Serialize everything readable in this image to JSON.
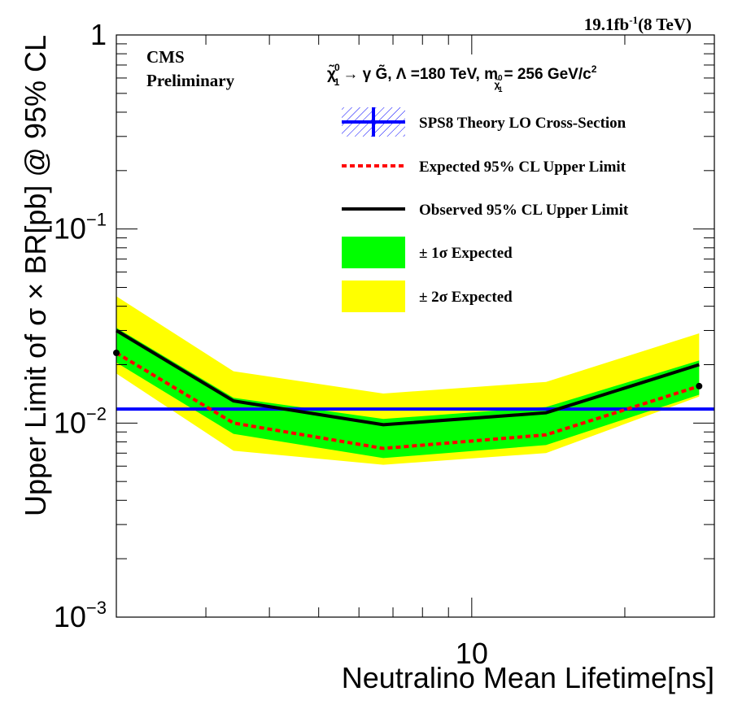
{
  "chart_data": {
    "type": "line",
    "xlabel": "Neutralino Mean Lifetime[ns]",
    "ylabel": "Upper Limit of σ × BR[pb] @ 95% CL",
    "xscale": "log",
    "yscale": "log",
    "xlim": [
      2,
      30
    ],
    "ylim": [
      0.001,
      1
    ],
    "x_tick_labels": [
      "10"
    ],
    "y_tick_labels": [
      {
        "base": "10",
        "exp": "−3"
      },
      {
        "base": "10",
        "exp": "−2"
      },
      {
        "base": "10",
        "exp": "−1"
      },
      {
        "base": "1",
        "exp": ""
      }
    ],
    "lumi_label": {
      "main": "19.1fb",
      "sup": "-1",
      "tail": "(8 TeV)"
    },
    "experiment_label": [
      "CMS",
      "Preliminary"
    ],
    "process_label": {
      "chi": "χ̃",
      "chi_sup": "0",
      "chi_sub": "1",
      "arrow": "→ γ G̃,  Λ =180 TeV, m",
      "m_sub_sup": "0",
      "m_sub": "χ̃",
      "m_sub_sub": "1",
      "tail": "= 256 GeV/c",
      "tail_sup": "2"
    },
    "legend_position": "top-right",
    "legend": [
      {
        "key": "theory",
        "label": "SPS8 Theory LO Cross-Section"
      },
      {
        "key": "expected",
        "label": "Expected 95% CL Upper Limit"
      },
      {
        "key": "observed",
        "label": "Observed  95% CL Upper Limit"
      },
      {
        "key": "band1",
        "label": "± 1σ Expected"
      },
      {
        "key": "band2",
        "label": "± 2σ Expected"
      }
    ],
    "x": [
      2,
      3.4,
      6.7,
      14,
      28
    ],
    "series": [
      {
        "name": "Observed  95% CL Upper Limit",
        "values": [
          0.03,
          0.013,
          0.0098,
          0.0113,
          0.02
        ]
      },
      {
        "name": "Expected 95% CL Upper Limit",
        "values": [
          0.023,
          0.01,
          0.0074,
          0.0087,
          0.0155
        ]
      },
      {
        "name": "± 1σ Expected",
        "lower": [
          0.0205,
          0.0088,
          0.0066,
          0.0077,
          0.014
        ],
        "upper": [
          0.031,
          0.0135,
          0.0105,
          0.0121,
          0.021
        ]
      },
      {
        "name": "± 2σ Expected",
        "lower": [
          0.018,
          0.0072,
          0.0061,
          0.007,
          0.0137
        ],
        "upper": [
          0.045,
          0.0185,
          0.0142,
          0.0163,
          0.029
        ]
      },
      {
        "name": "SPS8 Theory LO Cross-Section",
        "values": [
          0.0118,
          0.0118,
          0.0118,
          0.0118,
          0.0118
        ]
      }
    ],
    "colors": {
      "observed": "#000000",
      "expected": "#ff0000",
      "band1": "#00ff00",
      "band2": "#ffff00",
      "theory": "#0000ff"
    }
  }
}
